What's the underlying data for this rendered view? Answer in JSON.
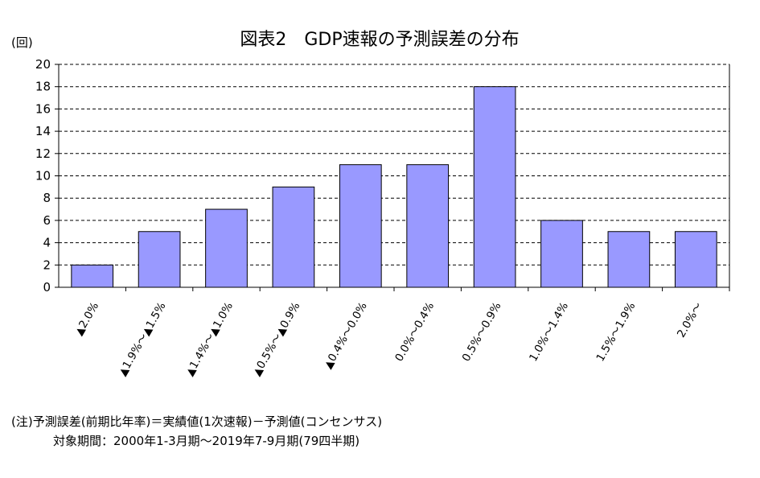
{
  "chart_data": {
    "type": "bar",
    "title": "図表2　GDP速報の予測誤差の分布",
    "ylabel": "(回)",
    "xlabel": "",
    "ylim": [
      0,
      20
    ],
    "yticks": [
      0,
      2,
      4,
      6,
      8,
      10,
      12,
      14,
      16,
      18,
      20
    ],
    "grid": true,
    "bar_color": "#9999ff",
    "categories": [
      "▲2.0%",
      "▲1.9%～▲1.5%",
      "▲1.4%～▲1.0%",
      "▲0.5%～▲0.9%",
      "▲0.4%～0.0%",
      "0.0%～0.4%",
      "0.5%～0.9%",
      "1.0%～1.4%",
      "1.5%～1.9%",
      "2.0%～"
    ],
    "values": [
      2,
      5,
      7,
      9,
      11,
      11,
      18,
      6,
      5,
      5
    ]
  },
  "notes": {
    "line1": "(注)予測誤差(前期比年率)＝実績値(1次速報)－予測値(コンセンサス)",
    "line2": "対象期間：2000年1-3月期～2019年7-9月期(79四半期)"
  }
}
